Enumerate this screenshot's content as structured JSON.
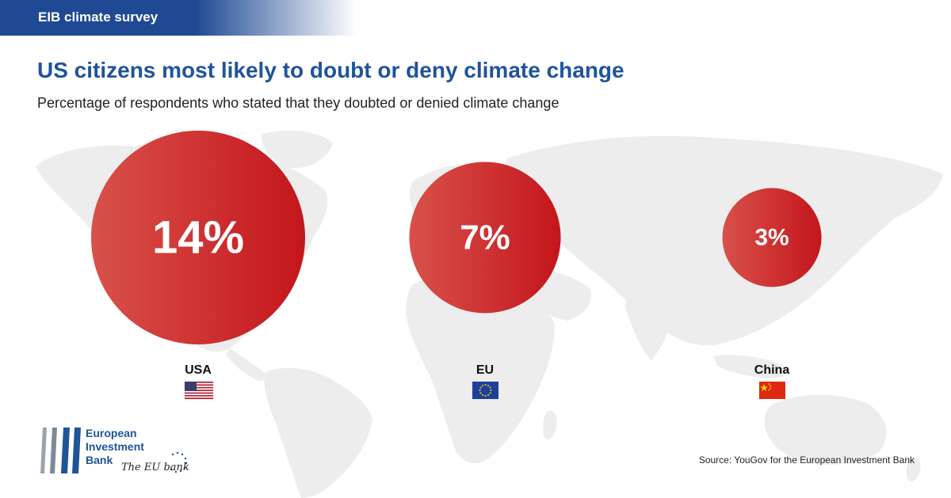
{
  "header": {
    "tag": "EIB climate survey"
  },
  "title": "US citizens most likely to doubt or deny climate change",
  "subtitle": "Percentage of respondents who stated that they doubted or denied climate change",
  "colors": {
    "accent_blue": "#1f5499",
    "bubble_red": "#c4161c",
    "bubble_red_light": "#d9534f",
    "map_grey": "#ececec"
  },
  "chart_data": {
    "type": "bubble",
    "title": "US citizens most likely to doubt or deny climate change",
    "subtitle": "Percentage of respondents who stated that they doubted or denied climate change",
    "categories": [
      "USA",
      "EU",
      "China"
    ],
    "values": [
      14,
      7,
      3
    ],
    "value_labels": [
      "14%",
      "7%",
      "3%"
    ],
    "unit": "%",
    "flags": [
      "us-flag-icon",
      "eu-flag-icon",
      "china-flag-icon"
    ]
  },
  "logo": {
    "line1": "European",
    "line2": "Investment",
    "line3": "Bank",
    "tagline": "The EU bank"
  },
  "source": "Source: YouGov for the European Investment Bank"
}
